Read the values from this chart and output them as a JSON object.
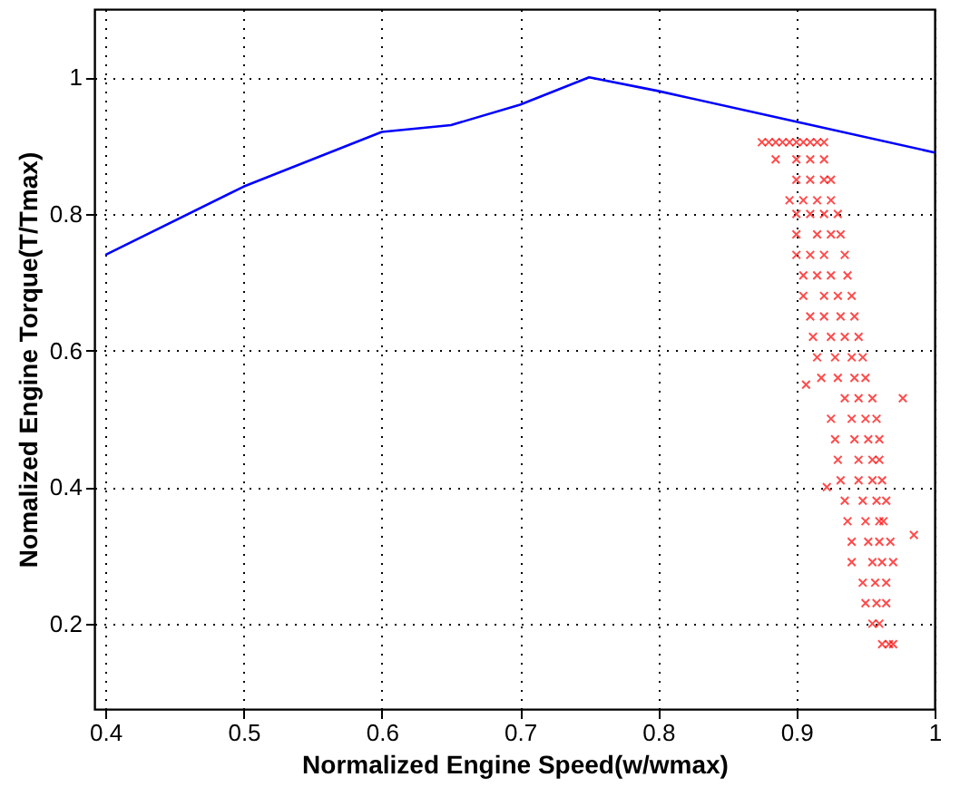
{
  "chart_data": {
    "type": "line",
    "xlabel": "Normalized Engine Speed(w/wmax)",
    "ylabel": "Nomalized Engine Torque(T/Tmax)",
    "xlim": [
      0.392,
      1
    ],
    "xticks": [
      0.4,
      0.5,
      0.6,
      0.7,
      0.8,
      0.9,
      1
    ],
    "ylim": [
      0.075,
      1.1
    ],
    "yticks": [
      0.2,
      0.4,
      0.6,
      0.8,
      1
    ],
    "grid": true,
    "series": [
      {
        "color": "#0000ff",
        "marker": "none",
        "x": [
          0.4,
          0.5,
          0.6,
          0.65,
          0.7,
          0.75,
          0.8,
          0.9,
          1.0
        ],
        "values": [
          0.74,
          0.84,
          0.92,
          0.93,
          0.96,
          1.0,
          0.98,
          0.935,
          0.89
        ]
      },
      {
        "type": "scatter",
        "color": "#ff0000",
        "marker": "cross",
        "x": [
          0.875,
          0.88,
          0.885,
          0.89,
          0.895,
          0.9,
          0.905,
          0.91,
          0.915,
          0.92,
          0.885,
          0.9,
          0.91,
          0.92,
          0.9,
          0.91,
          0.92,
          0.925,
          0.895,
          0.905,
          0.915,
          0.925,
          0.9,
          0.91,
          0.92,
          0.93,
          0.9,
          0.915,
          0.925,
          0.932,
          0.9,
          0.91,
          0.92,
          0.935,
          0.905,
          0.915,
          0.925,
          0.937,
          0.905,
          0.92,
          0.93,
          0.94,
          0.91,
          0.92,
          0.932,
          0.942,
          0.912,
          0.925,
          0.935,
          0.945,
          0.915,
          0.928,
          0.94,
          0.948,
          0.918,
          0.93,
          0.942,
          0.95,
          0.907,
          0.977,
          0.935,
          0.945,
          0.955,
          0.925,
          0.94,
          0.95,
          0.958,
          0.928,
          0.942,
          0.952,
          0.96,
          0.93,
          0.945,
          0.955,
          0.96,
          0.932,
          0.945,
          0.955,
          0.962,
          0.922,
          0.935,
          0.948,
          0.958,
          0.965,
          0.937,
          0.95,
          0.96,
          0.963,
          0.985,
          0.94,
          0.952,
          0.96,
          0.968,
          0.94,
          0.955,
          0.962,
          0.97,
          0.948,
          0.957,
          0.965,
          0.95,
          0.958,
          0.965,
          0.955,
          0.96,
          0.962,
          0.967,
          0.97
        ],
        "values": [
          0.905,
          0.905,
          0.905,
          0.905,
          0.905,
          0.905,
          0.905,
          0.905,
          0.905,
          0.905,
          0.88,
          0.88,
          0.88,
          0.88,
          0.85,
          0.85,
          0.85,
          0.85,
          0.82,
          0.82,
          0.82,
          0.82,
          0.8,
          0.8,
          0.8,
          0.8,
          0.77,
          0.77,
          0.77,
          0.77,
          0.74,
          0.74,
          0.74,
          0.74,
          0.71,
          0.71,
          0.71,
          0.71,
          0.68,
          0.68,
          0.68,
          0.68,
          0.65,
          0.65,
          0.65,
          0.65,
          0.62,
          0.62,
          0.62,
          0.62,
          0.59,
          0.59,
          0.59,
          0.59,
          0.56,
          0.56,
          0.56,
          0.56,
          0.55,
          0.53,
          0.53,
          0.53,
          0.53,
          0.5,
          0.5,
          0.5,
          0.5,
          0.47,
          0.47,
          0.47,
          0.47,
          0.44,
          0.44,
          0.44,
          0.44,
          0.41,
          0.41,
          0.41,
          0.41,
          0.4,
          0.38,
          0.38,
          0.38,
          0.38,
          0.35,
          0.35,
          0.35,
          0.35,
          0.33,
          0.32,
          0.32,
          0.32,
          0.32,
          0.29,
          0.29,
          0.29,
          0.29,
          0.26,
          0.26,
          0.26,
          0.23,
          0.23,
          0.23,
          0.2,
          0.2,
          0.17,
          0.17,
          0.17
        ]
      }
    ]
  }
}
